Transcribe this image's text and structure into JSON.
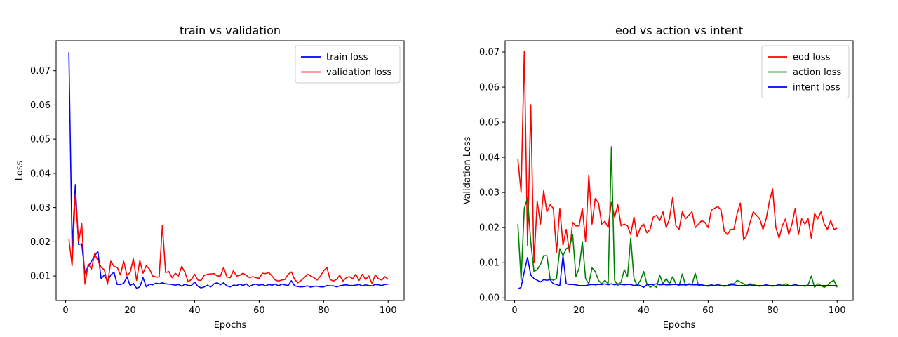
{
  "chart_data": [
    {
      "type": "line",
      "title": "train vs validation",
      "xlabel": "Epochs",
      "ylabel": "Loss",
      "xlim": [
        -2.95,
        104.95
      ],
      "ylim": [
        0.00283,
        0.07876
      ],
      "xticks": [
        0,
        20,
        40,
        60,
        80,
        100
      ],
      "yticks": [
        0.01,
        0.02,
        0.03,
        0.04,
        0.05,
        0.06,
        0.07
      ],
      "ytick_labels": [
        "0.01",
        "0.02",
        "0.03",
        "0.04",
        "0.05",
        "0.06",
        "0.07"
      ],
      "legend_position": "top-right",
      "grid": false,
      "x": [
        1,
        2,
        3,
        4,
        5,
        6,
        7,
        8,
        9,
        10,
        11,
        12,
        13,
        14,
        15,
        16,
        17,
        18,
        19,
        20,
        21,
        22,
        23,
        24,
        25,
        26,
        27,
        28,
        29,
        30,
        31,
        32,
        33,
        34,
        35,
        36,
        37,
        38,
        39,
        40,
        41,
        42,
        43,
        44,
        45,
        46,
        47,
        48,
        49,
        50,
        51,
        52,
        53,
        54,
        55,
        56,
        57,
        58,
        59,
        60,
        61,
        62,
        63,
        64,
        65,
        66,
        67,
        68,
        69,
        70,
        71,
        72,
        73,
        74,
        75,
        76,
        77,
        78,
        79,
        80,
        81,
        82,
        83,
        84,
        85,
        86,
        87,
        88,
        89,
        90,
        91,
        92,
        93,
        94,
        95,
        96,
        97,
        98,
        99,
        100
      ],
      "series": [
        {
          "name": "train loss",
          "color": "#0000ff",
          "values": [
            0.0754,
            0.0182,
            0.0367,
            0.0192,
            0.0194,
            0.0108,
            0.0128,
            0.0143,
            0.0158,
            0.0172,
            0.0092,
            0.0103,
            0.0085,
            0.0103,
            0.0111,
            0.0075,
            0.0075,
            0.0078,
            0.0098,
            0.0072,
            0.0078,
            0.0064,
            0.0068,
            0.0095,
            0.0068,
            0.0076,
            0.0074,
            0.0079,
            0.0077,
            0.008,
            0.0077,
            0.0076,
            0.0075,
            0.0073,
            0.0075,
            0.007,
            0.0076,
            0.0072,
            0.0072,
            0.0082,
            0.007,
            0.0065,
            0.0068,
            0.0073,
            0.0068,
            0.0077,
            0.008,
            0.0074,
            0.008,
            0.0071,
            0.0068,
            0.0073,
            0.0072,
            0.0076,
            0.0072,
            0.0077,
            0.0069,
            0.0074,
            0.0076,
            0.0073,
            0.0075,
            0.0071,
            0.0075,
            0.0073,
            0.0076,
            0.0071,
            0.0076,
            0.0074,
            0.0072,
            0.0086,
            0.0071,
            0.0069,
            0.0068,
            0.0069,
            0.0071,
            0.0067,
            0.007,
            0.007,
            0.0068,
            0.0068,
            0.0072,
            0.0071,
            0.0071,
            0.0068,
            0.0071,
            0.0073,
            0.0074,
            0.0072,
            0.0072,
            0.0073,
            0.0075,
            0.0071,
            0.0074,
            0.0072,
            0.0071,
            0.0075,
            0.0074,
            0.0072,
            0.0075,
            0.0076
          ]
        },
        {
          "name": "validation loss",
          "color": "#ff0000",
          "values": [
            0.0209,
            0.013,
            0.034,
            0.02,
            0.0253,
            0.0076,
            0.0135,
            0.012,
            0.0165,
            0.0145,
            0.0125,
            0.0118,
            0.0076,
            0.0143,
            0.0128,
            0.0125,
            0.0103,
            0.0143,
            0.0102,
            0.011,
            0.015,
            0.0087,
            0.0145,
            0.0108,
            0.013,
            0.012,
            0.01,
            0.0097,
            0.0097,
            0.0248,
            0.011,
            0.0113,
            0.0095,
            0.0108,
            0.01,
            0.0128,
            0.011,
            0.0083,
            0.009,
            0.0105,
            0.0088,
            0.0087,
            0.0102,
            0.0105,
            0.0106,
            0.0107,
            0.01,
            0.01,
            0.0125,
            0.0097,
            0.0095,
            0.0115,
            0.01,
            0.0102,
            0.0108,
            0.0102,
            0.0095,
            0.0098,
            0.0095,
            0.0093,
            0.0108,
            0.0107,
            0.011,
            0.01,
            0.0088,
            0.0085,
            0.0088,
            0.009,
            0.0105,
            0.0112,
            0.009,
            0.008,
            0.0087,
            0.0095,
            0.0105,
            0.01,
            0.0095,
            0.0088,
            0.01,
            0.0115,
            0.0125,
            0.009,
            0.0085,
            0.009,
            0.0102,
            0.0085,
            0.0095,
            0.0098,
            0.0092,
            0.0105,
            0.0087,
            0.0105,
            0.009,
            0.01,
            0.0078,
            0.0103,
            0.0092,
            0.0088,
            0.0098,
            0.009
          ]
        }
      ]
    },
    {
      "type": "line",
      "title": "eod vs action vs intent",
      "xlabel": "Epochs",
      "ylabel": "Validation Loss",
      "xlim": [
        -2.95,
        104.95
      ],
      "ylim": [
        -0.00075,
        0.0732
      ],
      "xticks": [
        0,
        20,
        40,
        60,
        80,
        100
      ],
      "yticks": [
        0.0,
        0.01,
        0.02,
        0.03,
        0.04,
        0.05,
        0.06,
        0.07
      ],
      "ytick_labels": [
        "0.00",
        "0.01",
        "0.02",
        "0.03",
        "0.04",
        "0.05",
        "0.06",
        "0.07"
      ],
      "legend_position": "top-right",
      "grid": false,
      "x": [
        1,
        2,
        3,
        4,
        5,
        6,
        7,
        8,
        9,
        10,
        11,
        12,
        13,
        14,
        15,
        16,
        17,
        18,
        19,
        20,
        21,
        22,
        23,
        24,
        25,
        26,
        27,
        28,
        29,
        30,
        31,
        32,
        33,
        34,
        35,
        36,
        37,
        38,
        39,
        40,
        41,
        42,
        43,
        44,
        45,
        46,
        47,
        48,
        49,
        50,
        51,
        52,
        53,
        54,
        55,
        56,
        57,
        58,
        59,
        60,
        61,
        62,
        63,
        64,
        65,
        66,
        67,
        68,
        69,
        70,
        71,
        72,
        73,
        74,
        75,
        76,
        77,
        78,
        79,
        80,
        81,
        82,
        83,
        84,
        85,
        86,
        87,
        88,
        89,
        90,
        91,
        92,
        93,
        94,
        95,
        96,
        97,
        98,
        99,
        100
      ],
      "series": [
        {
          "name": "eod loss",
          "color": "#ff0000",
          "values": [
            0.0395,
            0.03,
            0.0702,
            0.015,
            0.055,
            0.01,
            0.0275,
            0.021,
            0.0305,
            0.0245,
            0.0265,
            0.0255,
            0.013,
            0.0255,
            0.015,
            0.0195,
            0.013,
            0.0215,
            0.0205,
            0.0205,
            0.0255,
            0.016,
            0.035,
            0.021,
            0.0283,
            0.027,
            0.021,
            0.0218,
            0.02,
            0.0272,
            0.023,
            0.0265,
            0.0205,
            0.021,
            0.0205,
            0.018,
            0.023,
            0.0175,
            0.02,
            0.021,
            0.0185,
            0.0195,
            0.023,
            0.0235,
            0.022,
            0.0245,
            0.02,
            0.0225,
            0.0285,
            0.0205,
            0.0195,
            0.0245,
            0.0225,
            0.0235,
            0.0245,
            0.02,
            0.021,
            0.022,
            0.0215,
            0.02,
            0.025,
            0.0255,
            0.026,
            0.025,
            0.019,
            0.018,
            0.0195,
            0.0195,
            0.024,
            0.027,
            0.0165,
            0.018,
            0.0215,
            0.0245,
            0.0235,
            0.0225,
            0.0195,
            0.0225,
            0.0275,
            0.031,
            0.02,
            0.017,
            0.0205,
            0.0225,
            0.018,
            0.021,
            0.0255,
            0.018,
            0.0225,
            0.021,
            0.0225,
            0.017,
            0.024,
            0.0225,
            0.0245,
            0.021,
            0.0195,
            0.022,
            0.0195,
            0.0198
          ]
        },
        {
          "name": "action loss",
          "color": "#008000",
          "values": [
            0.021,
            0.005,
            0.0255,
            0.0285,
            0.016,
            0.0075,
            0.008,
            0.0095,
            0.012,
            0.012,
            0.0055,
            0.005,
            0.0055,
            0.014,
            0.012,
            0.014,
            0.0145,
            0.018,
            0.006,
            0.0085,
            0.016,
            0.0055,
            0.004,
            0.0085,
            0.0075,
            0.005,
            0.004,
            0.005,
            0.004,
            0.043,
            0.005,
            0.0035,
            0.0045,
            0.008,
            0.006,
            0.017,
            0.0055,
            0.0035,
            0.005,
            0.0075,
            0.004,
            0.003,
            0.0035,
            0.003,
            0.0065,
            0.004,
            0.0055,
            0.004,
            0.006,
            0.004,
            0.0035,
            0.0068,
            0.0035,
            0.004,
            0.0038,
            0.007,
            0.0035,
            0.0037,
            0.0035,
            0.0033,
            0.0035,
            0.0035,
            0.0038,
            0.0035,
            0.0033,
            0.0035,
            0.004,
            0.004,
            0.005,
            0.0045,
            0.004,
            0.0035,
            0.004,
            0.0038,
            0.0035,
            0.0033,
            0.0035,
            0.0035,
            0.0035,
            0.0033,
            0.0035,
            0.0038,
            0.0035,
            0.004,
            0.0035,
            0.0035,
            0.0038,
            0.0035,
            0.0035,
            0.0033,
            0.0037,
            0.0062,
            0.003,
            0.004,
            0.0035,
            0.003,
            0.0035,
            0.0045,
            0.005,
            0.003
          ]
        },
        {
          "name": "intent loss",
          "color": "#0000ff",
          "values": [
            0.0025,
            0.003,
            0.0075,
            0.0115,
            0.0065,
            0.0055,
            0.005,
            0.0045,
            0.0052,
            0.005,
            0.0052,
            0.004,
            0.0038,
            0.0035,
            0.012,
            0.004,
            0.0038,
            0.0038,
            0.0037,
            0.0035,
            0.0035,
            0.0035,
            0.0037,
            0.0038,
            0.0037,
            0.0038,
            0.0038,
            0.004,
            0.0037,
            0.004,
            0.0037,
            0.004,
            0.0038,
            0.0037,
            0.0038,
            0.0038,
            0.0035,
            0.0037,
            0.0035,
            0.003,
            0.0037,
            0.0038,
            0.0038,
            0.004,
            0.0037,
            0.0038,
            0.0037,
            0.0037,
            0.0038,
            0.0038,
            0.0037,
            0.0037,
            0.0037,
            0.0038,
            0.0037,
            0.0037,
            0.0037,
            0.0037,
            0.0035,
            0.0035,
            0.0037,
            0.0035,
            0.0037,
            0.0035,
            0.0035,
            0.0035,
            0.0037,
            0.0037,
            0.0035,
            0.0035,
            0.0035,
            0.0035,
            0.0037,
            0.0035,
            0.0035,
            0.0035,
            0.0035,
            0.0037,
            0.0035,
            0.0035,
            0.0035,
            0.0037,
            0.0035,
            0.0035,
            0.0035,
            0.0035,
            0.0037,
            0.0035,
            0.0035,
            0.0035,
            0.0035,
            0.0035,
            0.0035,
            0.0035,
            0.0035,
            0.0035,
            0.0035,
            0.0035,
            0.0035,
            0.0035
          ]
        }
      ]
    }
  ]
}
